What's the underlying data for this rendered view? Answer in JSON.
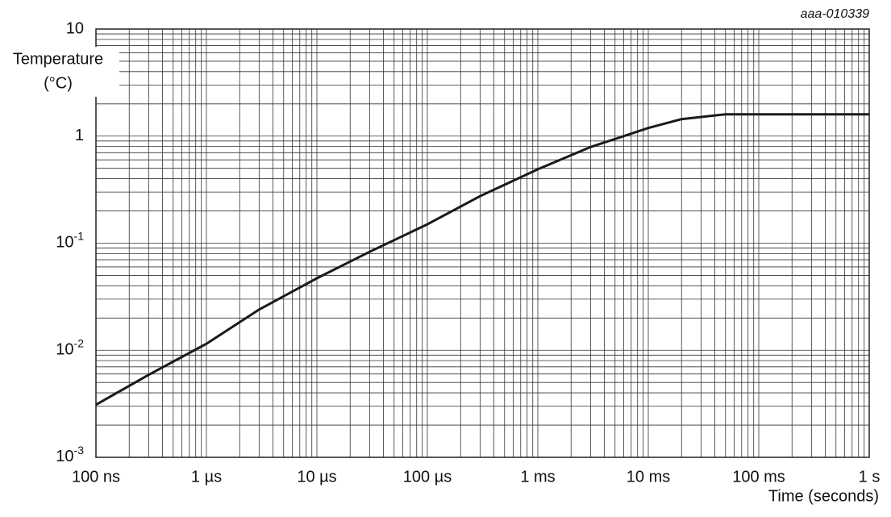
{
  "chart_data": {
    "type": "line",
    "annotation": "aaa-010339",
    "ylabel": [
      "Temperature",
      "(°C)"
    ],
    "xlabel": "Time (seconds)",
    "xscale": "log",
    "yscale": "log",
    "grid": true,
    "xlim": [
      1e-07,
      1
    ],
    "ylim": [
      0.001,
      10
    ],
    "xticks": [
      {
        "value": 1e-07,
        "label": "100 ns"
      },
      {
        "value": 1e-06,
        "label": "1 µs"
      },
      {
        "value": 1e-05,
        "label": "10 µs"
      },
      {
        "value": 0.0001,
        "label": "100 µs"
      },
      {
        "value": 0.001,
        "label": "1 ms"
      },
      {
        "value": 0.01,
        "label": "10 ms"
      },
      {
        "value": 0.1,
        "label": "100 ms"
      },
      {
        "value": 1,
        "label": "1 s"
      }
    ],
    "yticks": [
      {
        "value": 0.001,
        "label": "10-3"
      },
      {
        "value": 0.01,
        "label": "10-2"
      },
      {
        "value": 0.1,
        "label": "10-1"
      },
      1,
      10
    ],
    "x": [
      1e-07,
      3e-07,
      1e-06,
      3e-06,
      1e-05,
      3e-05,
      0.0001,
      0.0003,
      0.001,
      0.003,
      0.01,
      0.02,
      0.05,
      0.1,
      1
    ],
    "series": [
      {
        "color": "#1a1a1a",
        "values": [
          0.0031,
          0.0059,
          0.0115,
          0.024,
          0.047,
          0.083,
          0.15,
          0.275,
          0.49,
          0.79,
          1.19,
          1.44,
          1.6,
          1.6,
          1.6
        ]
      }
    ]
  }
}
